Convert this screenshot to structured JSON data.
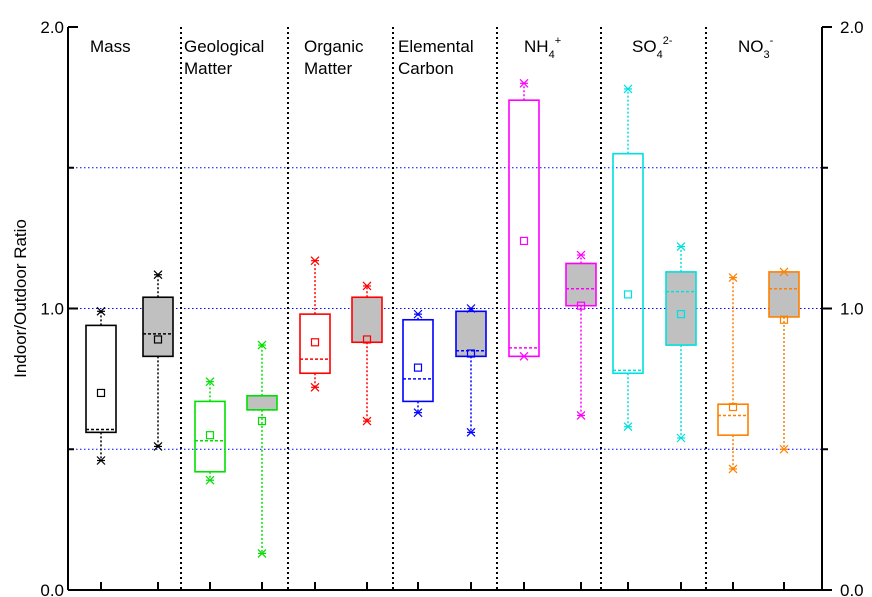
{
  "chart_data": {
    "type": "box",
    "ylabel": "Indoor/Outdoor Ratio",
    "ylim": [
      0.0,
      2.0
    ],
    "y_ticks_left": [
      "0.0",
      "1.0",
      "2.0"
    ],
    "y_ticks_right": [
      "0.0",
      "1.0",
      "2.0"
    ],
    "grid": "dotted horizontal at 0.5, 1.0, 1.5",
    "categories": [
      {
        "lines": [
          "Mass"
        ],
        "color": "#000000"
      },
      {
        "lines": [
          "Geological",
          "Matter"
        ],
        "color": "#00e000"
      },
      {
        "lines": [
          "Organic",
          "Matter"
        ],
        "color": "#ff0000"
      },
      {
        "lines": [
          "Elemental",
          "Carbon"
        ],
        "color": "#0000ff"
      },
      {
        "lines": [
          "NH4+"
        ],
        "color": "#ff00ff",
        "base": "NH",
        "sub": "4",
        "sup": "+"
      },
      {
        "lines": [
          "SO42-"
        ],
        "color": "#00e0e0",
        "base": "SO",
        "sub": "4",
        "sup": "2-"
      },
      {
        "lines": [
          "NO3-"
        ],
        "color": "#ff8000",
        "base": "NO",
        "sub": "3",
        "sup": "-"
      }
    ],
    "boxes": [
      {
        "category": 0,
        "filled": false,
        "min": 0.46,
        "q1": 0.56,
        "median": 0.57,
        "q3": 0.94,
        "max": 0.99,
        "mean": 0.7
      },
      {
        "category": 0,
        "filled": true,
        "min": 0.51,
        "q1": 0.83,
        "median": 0.91,
        "q3": 1.04,
        "max": 1.12,
        "mean": 0.89
      },
      {
        "category": 1,
        "filled": false,
        "min": 0.39,
        "q1": 0.42,
        "median": 0.53,
        "q3": 0.67,
        "max": 0.74,
        "mean": 0.55
      },
      {
        "category": 1,
        "filled": true,
        "min": 0.13,
        "q1": 0.64,
        "median": 0.64,
        "q3": 0.69,
        "max": 0.87,
        "mean": 0.6
      },
      {
        "category": 2,
        "filled": false,
        "min": 0.72,
        "q1": 0.77,
        "median": 0.82,
        "q3": 0.98,
        "max": 1.17,
        "mean": 0.88
      },
      {
        "category": 2,
        "filled": true,
        "min": 0.6,
        "q1": 0.88,
        "median": 0.88,
        "q3": 1.04,
        "max": 1.08,
        "mean": 0.89
      },
      {
        "category": 3,
        "filled": false,
        "min": 0.63,
        "q1": 0.67,
        "median": 0.75,
        "q3": 0.96,
        "max": 0.98,
        "mean": 0.79
      },
      {
        "category": 3,
        "filled": true,
        "min": 0.56,
        "q1": 0.83,
        "median": 0.85,
        "q3": 0.99,
        "max": 1.0,
        "mean": 0.84
      },
      {
        "category": 4,
        "filled": false,
        "min": 0.83,
        "q1": 0.83,
        "median": 0.86,
        "q3": 1.74,
        "max": 1.8,
        "mean": 1.24
      },
      {
        "category": 4,
        "filled": true,
        "min": 0.62,
        "q1": 1.01,
        "median": 1.07,
        "q3": 1.16,
        "max": 1.19,
        "mean": 1.01
      },
      {
        "category": 5,
        "filled": false,
        "min": 0.58,
        "q1": 0.77,
        "median": 0.78,
        "q3": 1.55,
        "max": 1.78,
        "mean": 1.05
      },
      {
        "category": 5,
        "filled": true,
        "min": 0.54,
        "q1": 0.87,
        "median": 1.06,
        "q3": 1.13,
        "max": 1.22,
        "mean": 0.98
      },
      {
        "category": 6,
        "filled": false,
        "min": 0.43,
        "q1": 0.55,
        "median": 0.62,
        "q3": 0.66,
        "max": 1.11,
        "mean": 0.65
      },
      {
        "category": 6,
        "filled": true,
        "min": 0.5,
        "q1": 0.97,
        "median": 1.07,
        "q3": 1.13,
        "max": 1.13,
        "mean": 0.96
      }
    ]
  }
}
